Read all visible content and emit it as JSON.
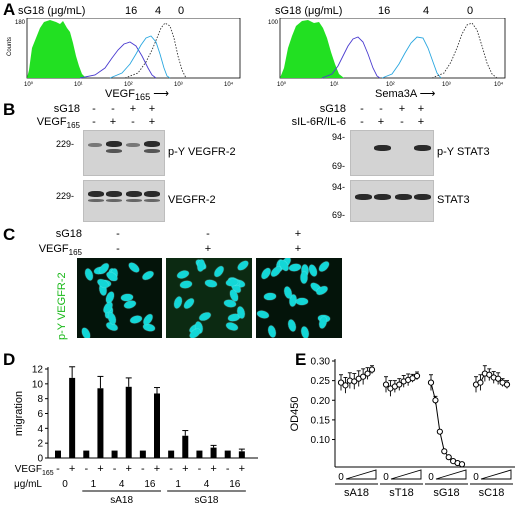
{
  "panels": {
    "a": {
      "label": "A",
      "left": {
        "conc_label": "sG18 (μg/mL)",
        "concs": [
          "16",
          "4",
          "0"
        ],
        "ymax": "180",
        "ylabel": "Counts",
        "xticks": [
          "10⁰",
          "10¹",
          "10²",
          "10³",
          "10⁴"
        ],
        "xlabel_main": "VEGF",
        "xlabel_sub": "165"
      },
      "right": {
        "conc_label": "sG18 (μg/mL)",
        "concs": [
          "16",
          "4",
          "0"
        ],
        "ymax": "100",
        "xticks": [
          "10⁰",
          "10¹",
          "10²",
          "10³",
          "10⁴"
        ],
        "xlabel": "Sema3A"
      }
    },
    "b": {
      "label": "B",
      "left": {
        "rows": [
          {
            "label": "sG18",
            "signs": [
              "-",
              "-",
              "+",
              "+"
            ]
          },
          {
            "label_main": "VEGF",
            "label_sub": "165",
            "signs": [
              "-",
              "+",
              "-",
              "+"
            ]
          }
        ],
        "blots": [
          {
            "label": "p-Y VEGFR-2",
            "mw": "229-"
          },
          {
            "label": "VEGFR-2",
            "mw": "229-"
          }
        ]
      },
      "right": {
        "rows": [
          {
            "label": "sG18",
            "signs": [
              "-",
              "-",
              "+",
              "+"
            ]
          },
          {
            "label": "sIL-6R/IL-6",
            "signs": [
              "-",
              "+",
              "-",
              "+"
            ]
          }
        ],
        "blots": [
          {
            "label": "p-Y STAT3",
            "mw": [
              "94-",
              "69-"
            ]
          },
          {
            "label": "STAT3",
            "mw": [
              "94-",
              "69-"
            ]
          }
        ]
      }
    },
    "c": {
      "label": "C",
      "rows": [
        {
          "label": "sG18",
          "signs": [
            "-",
            "-",
            "+"
          ]
        },
        {
          "label_main": "VEGF",
          "label_sub": "165",
          "signs": [
            "-",
            "+",
            "+"
          ]
        }
      ],
      "ylabel": "p-Y VEGFR-2"
    },
    "d": {
      "label": "D"
    },
    "e": {
      "label": "E"
    }
  },
  "chart_data": [
    {
      "panel": "D",
      "type": "bar",
      "ylabel": "migration",
      "ylim": [
        0,
        12
      ],
      "yticks": [
        0,
        2,
        4,
        6,
        8,
        10,
        12
      ],
      "values": [
        1.0,
        10.8,
        1.0,
        9.4,
        1.0,
        9.6,
        1.0,
        8.7,
        1.0,
        3.0,
        1.0,
        1.4,
        1.0,
        0.9
      ],
      "errors": [
        0.1,
        1.5,
        0.1,
        1.6,
        0.1,
        1.2,
        0.1,
        0.8,
        0.1,
        0.7,
        0.1,
        0.3,
        0.1,
        0.3
      ],
      "vegf_row_label": "VEGF",
      "vegf_row_sub": "165",
      "vegf_signs": [
        "-",
        "+",
        "-",
        "+",
        "-",
        "+",
        "-",
        "+",
        "-",
        "+",
        "-",
        "+",
        "-",
        "+"
      ],
      "conc_row_label": "μg/mL",
      "concs": [
        "0",
        "1",
        "4",
        "16",
        "1",
        "4",
        "16"
      ],
      "groups": [
        {
          "name": "sA18",
          "from": 1,
          "to": 3
        },
        {
          "name": "sG18",
          "from": 4,
          "to": 6
        }
      ]
    },
    {
      "panel": "E",
      "type": "line",
      "ylabel": "OD450",
      "ylim": [
        0.0,
        0.3
      ],
      "yticks": [
        "0.30",
        "0.25",
        "0.20",
        "0.15",
        "0.10"
      ],
      "ytick_values": [
        0.3,
        0.25,
        0.2,
        0.15,
        0.1
      ],
      "series": [
        {
          "name": "sA18",
          "values": [
            0.245,
            0.238,
            0.25,
            0.248,
            0.255,
            0.26,
            0.268,
            0.278
          ],
          "errors": [
            0.02,
            0.02,
            0.02,
            0.02,
            0.02,
            0.02,
            0.015,
            0.01
          ]
        },
        {
          "name": "sT18",
          "values": [
            0.24,
            0.23,
            0.235,
            0.24,
            0.248,
            0.252,
            0.256,
            0.262
          ],
          "errors": [
            0.02,
            0.02,
            0.015,
            0.015,
            0.015,
            0.015,
            0.01,
            0.01
          ]
        },
        {
          "name": "sG18",
          "values": [
            0.245,
            0.2,
            0.12,
            0.07,
            0.055,
            0.045,
            0.04,
            0.037
          ],
          "errors": [
            0.02,
            0.01,
            0.005,
            0.005,
            0.003,
            0.003,
            0.002,
            0.002
          ]
        },
        {
          "name": "sC18",
          "values": [
            0.24,
            0.245,
            0.268,
            0.265,
            0.258,
            0.255,
            0.245,
            0.24
          ],
          "errors": [
            0.02,
            0.02,
            0.02,
            0.015,
            0.015,
            0.015,
            0.01,
            0.01
          ]
        }
      ],
      "zero_label": "0"
    }
  ]
}
